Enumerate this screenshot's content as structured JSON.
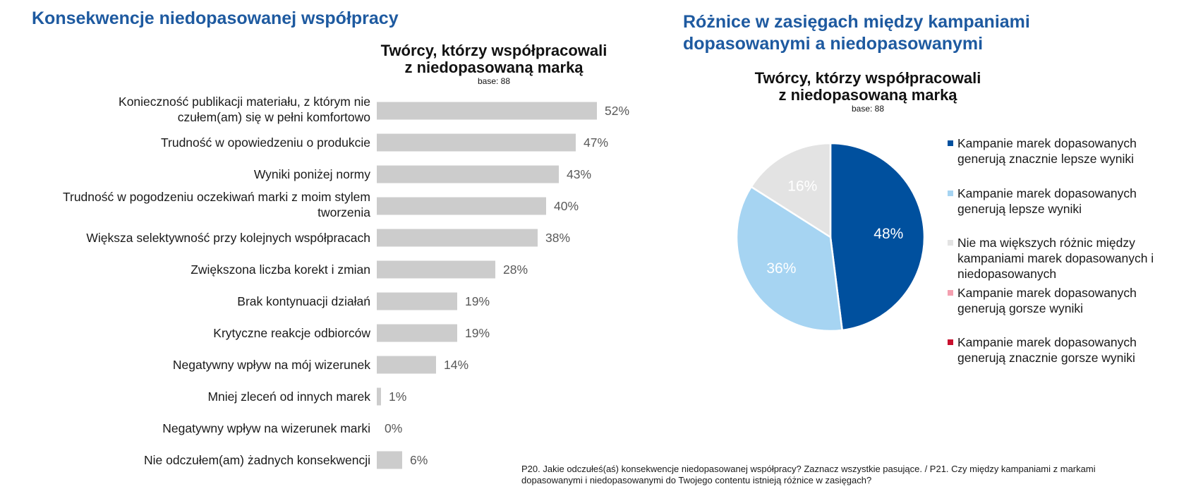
{
  "left_section": {
    "title": "Konsekwencje niedopasowanej współpracy"
  },
  "right_section": {
    "title_line1": "Różnice w zasięgach między kampaniami",
    "title_line2": "dopasowanymi a niedopasowanymi"
  },
  "chart_data": [
    {
      "type": "bar",
      "orientation": "horizontal",
      "title_line1": "Twórcy, którzy współpracowali",
      "title_line2": "z niedopasowaną marką",
      "base_label": "base: 88",
      "xlim": [
        0,
        100
      ],
      "bar_color": "#cccccc",
      "categories": [
        [
          "Konieczność publikacji materiału, z którym nie",
          "czułem(am) się w pełni komfortowo"
        ],
        [
          "Trudność w opowiedzeniu o produkcie"
        ],
        [
          "Wyniki poniżej normy"
        ],
        [
          "Trudność w pogodzeniu oczekiwań marki z moim stylem",
          "tworzenia"
        ],
        [
          "Większa selektywność przy kolejnych współpracach"
        ],
        [
          "Zwiększona liczba korekt i zmian"
        ],
        [
          "Brak kontynuacji działań"
        ],
        [
          "Krytyczne reakcje odbiorców"
        ],
        [
          "Negatywny wpływ na mój wizerunek"
        ],
        [
          "Mniej zleceń od innych marek"
        ],
        [
          "Negatywny wpływ na wizerunek marki"
        ],
        [
          "Nie odczułem(am) żadnych konsekwencji"
        ]
      ],
      "values": [
        52,
        47,
        43,
        40,
        38,
        28,
        19,
        19,
        14,
        1,
        0,
        6
      ],
      "value_labels": [
        "52%",
        "47%",
        "43%",
        "40%",
        "38%",
        "28%",
        "19%",
        "19%",
        "14%",
        "1%",
        "0%",
        "6%"
      ]
    },
    {
      "type": "pie",
      "title_line1": "Twórcy, którzy współpracowali",
      "title_line2": "z niedopasowaną marką",
      "base_label": "base: 88",
      "slices": [
        {
          "label": [
            "Kampanie marek dopasowanych",
            "generują znacznie lepsze wyniki"
          ],
          "value": 48,
          "value_label": "48%",
          "color": "#00509e"
        },
        {
          "label": [
            "Kampanie marek dopasowanych",
            "generują lepsze wyniki"
          ],
          "value": 36,
          "value_label": "36%",
          "color": "#a6d4f2"
        },
        {
          "label": [
            "Nie ma większych różnic między",
            "kampaniami marek dopasowanych i",
            "niedopasowanych"
          ],
          "value": 16,
          "value_label": "16%",
          "color": "#e3e3e3"
        },
        {
          "label": [
            "Kampanie marek dopasowanych",
            "generują gorsze wyniki"
          ],
          "value": 0,
          "value_label": "",
          "color": "#f4a0b0"
        },
        {
          "label": [
            "Kampanie marek dopasowanych",
            "generują znacznie gorsze wyniki"
          ],
          "value": 0,
          "value_label": "",
          "color": "#c8102e"
        }
      ],
      "legend_position": "right"
    }
  ],
  "footnote": {
    "line1": "P20. Jakie odczułeś(aś) konsekwencje niedopasowanej współpracy? Zaznacz wszystkie pasujące. / P21. Czy między kampaniami z markami",
    "line2": "dopasowanymi i niedopasowanymi do Twojego contentu istnieją różnice w zasięgach?"
  }
}
